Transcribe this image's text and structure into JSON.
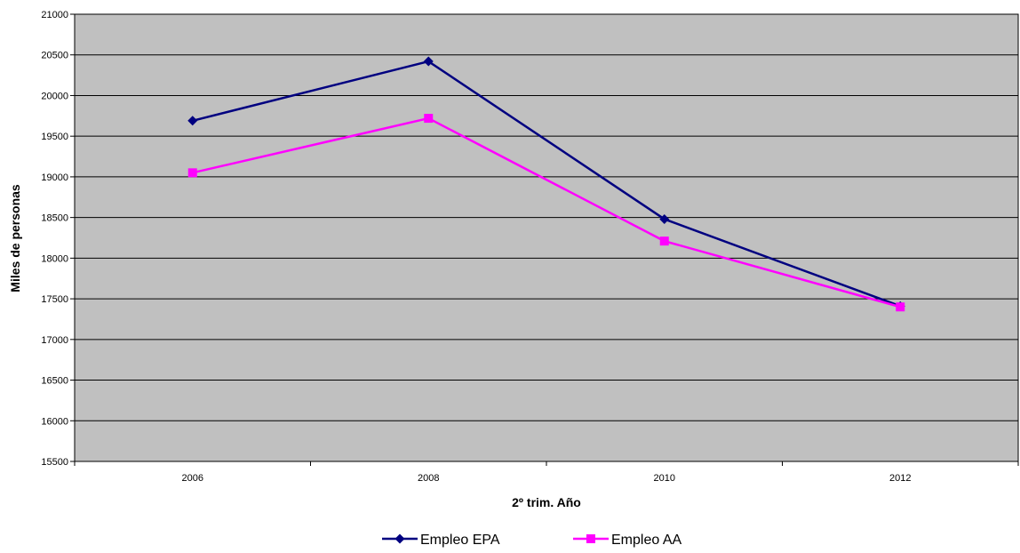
{
  "chart_data": {
    "type": "line",
    "categories": [
      "2006",
      "2008",
      "2010",
      "2012"
    ],
    "series": [
      {
        "name": "Empleo EPA",
        "values": [
          19690,
          20420,
          18480,
          17410
        ],
        "color": "#000080",
        "marker": "diamond"
      },
      {
        "name": "Empleo AA",
        "values": [
          19050,
          19720,
          18210,
          17400
        ],
        "color": "#ff00ff",
        "marker": "square"
      }
    ],
    "xlabel": "2º trim. Año",
    "ylabel": "Miles de personas",
    "ylim": [
      15500,
      21000
    ],
    "ytick_step": 500,
    "grid": true,
    "plot_background": "#c0c0c0",
    "legend_position": "bottom"
  }
}
